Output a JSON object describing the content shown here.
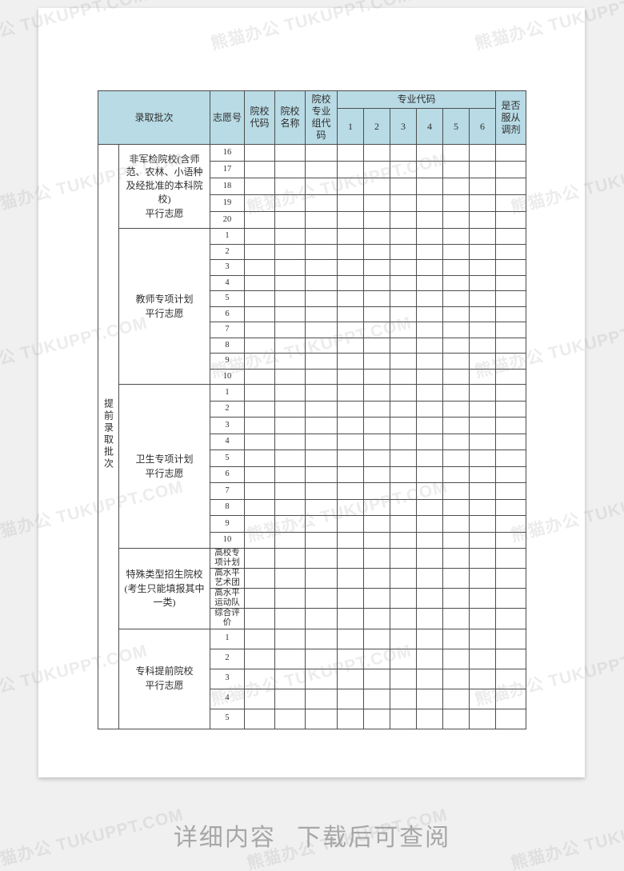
{
  "page": {
    "watermark": "熊猫办公 TUKUPPT.COM",
    "footer_caption": "详细内容 下载后可查阅"
  },
  "table": {
    "batch_column_label": "提前录取批次",
    "header": {
      "batch": "录取批次",
      "volunteer_no": "志愿号",
      "college_code": "院校代码",
      "college_name": "院校名称",
      "college_major_group_code": "院校专业组代码",
      "major_code": "专业代码",
      "major_code_numbers": [
        "1",
        "2",
        "3",
        "4",
        "5",
        "6"
      ],
      "obey_adjustment": "是否服从调剂"
    },
    "groups": [
      {
        "label": "非军检院校(含师范、农林、小语种及经批准的本科院校)",
        "sublabel": "平行志愿",
        "rows": [
          "16",
          "17",
          "18",
          "19",
          "20"
        ]
      },
      {
        "label": "教师专项计划",
        "sublabel": "平行志愿",
        "rows": [
          "1",
          "2",
          "3",
          "4",
          "5",
          "6",
          "7",
          "8",
          "9",
          "10"
        ]
      },
      {
        "label": "卫生专项计划",
        "sublabel": "平行志愿",
        "rows": [
          "1",
          "2",
          "3",
          "4",
          "5",
          "6",
          "7",
          "8",
          "9",
          "10"
        ]
      },
      {
        "label": "特殊类型招生院校",
        "sublabel": "(考生只能填报其中一类)",
        "rows": [
          "高校专项计划",
          "高水平艺术团",
          "高水平运动队",
          "综合评价"
        ]
      },
      {
        "label": "专科提前院校",
        "sublabel": "平行志愿",
        "rows": [
          "1",
          "2",
          "3",
          "4",
          "5"
        ]
      }
    ]
  },
  "colors": {
    "canvas_bg": "#f0f0f1",
    "page_bg": "#ffffff",
    "header_bg": "#b8dbe5",
    "border": "#4d4d4d",
    "caption_text": "#a7a7a7"
  }
}
